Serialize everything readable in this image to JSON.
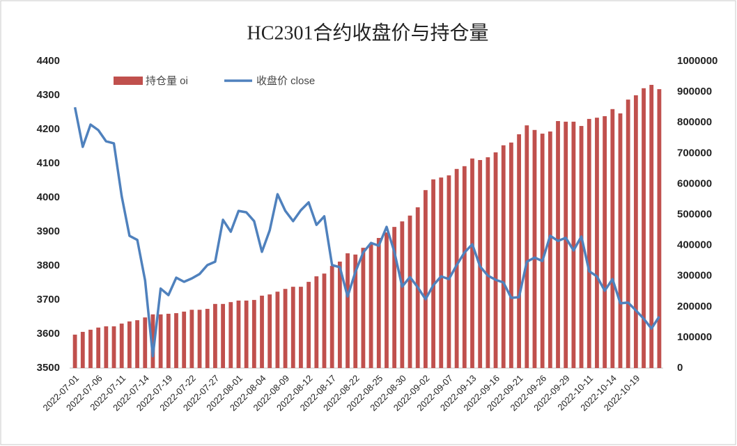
{
  "chart_data": {
    "type": "bar-line",
    "title": "HC2301合约收盘价与持仓量",
    "categories": [
      "2022-07-01",
      null,
      null,
      "2022-07-06",
      null,
      null,
      "2022-07-11",
      null,
      null,
      "2022-07-14",
      null,
      null,
      "2022-07-19",
      null,
      null,
      "2022-07-22",
      null,
      null,
      "2022-07-27",
      null,
      null,
      "2022-08-01",
      null,
      null,
      "2022-08-04",
      null,
      null,
      "2022-08-09",
      null,
      null,
      "2022-08-12",
      null,
      null,
      "2022-08-17",
      null,
      null,
      "2022-08-22",
      null,
      null,
      "2022-08-25",
      null,
      null,
      "2022-08-30",
      null,
      null,
      "2022-09-02",
      null,
      null,
      "2022-09-07",
      null,
      null,
      "2022-09-13",
      null,
      null,
      "2022-09-16",
      null,
      null,
      "2022-09-21",
      null,
      null,
      "2022-09-26",
      null,
      null,
      "2022-09-29",
      null,
      null,
      "2022-10-11",
      null,
      null,
      "2022-10-14",
      null,
      null,
      "2022-10-19",
      null,
      null,
      null
    ],
    "series": [
      {
        "name": "持仓量 oi",
        "type": "bar",
        "axis": "y2",
        "color": "#c0504d",
        "values": [
          109000,
          118000,
          125000,
          132000,
          136000,
          136000,
          145000,
          152000,
          156000,
          165000,
          175000,
          175000,
          177000,
          179000,
          184000,
          190000,
          190000,
          193000,
          209000,
          209000,
          215000,
          220000,
          220000,
          222000,
          236000,
          240000,
          249000,
          258000,
          265000,
          265000,
          281000,
          299000,
          308000,
          333000,
          347000,
          374000,
          370000,
          392000,
          406000,
          424000,
          442000,
          460000,
          478000,
          497000,
          524000,
          580000,
          615000,
          621000,
          628000,
          649000,
          658000,
          683000,
          678000,
          687000,
          703000,
          726000,
          735000,
          762000,
          791000,
          776000,
          764000,
          771000,
          805000,
          803000,
          803000,
          789000,
          812000,
          816000,
          821000,
          844000,
          830000,
          875000,
          889000,
          912000,
          923000,
          909000
        ]
      },
      {
        "name": "收盘价 close",
        "type": "line",
        "axis": "y",
        "color": "#4f81bd",
        "values": [
          4265,
          4149,
          4214,
          4198,
          4165,
          4159,
          4004,
          3888,
          3876,
          3757,
          3535,
          3733,
          3714,
          3765,
          3753,
          3763,
          3776,
          3802,
          3812,
          3935,
          3900,
          3961,
          3957,
          3931,
          3841,
          3904,
          4010,
          3961,
          3931,
          3963,
          3986,
          3920,
          3945,
          3802,
          3796,
          3710,
          3782,
          3839,
          3867,
          3859,
          3914,
          3841,
          3739,
          3767,
          3737,
          3702,
          3743,
          3769,
          3761,
          3802,
          3839,
          3863,
          3798,
          3771,
          3759,
          3751,
          3706,
          3708,
          3812,
          3824,
          3814,
          3888,
          3873,
          3882,
          3845,
          3886,
          3784,
          3769,
          3727,
          3761,
          3690,
          3692,
          3669,
          3645,
          3616,
          3651
        ]
      }
    ],
    "ylim": [
      3500,
      4400
    ],
    "yticks": [
      3500,
      3600,
      3700,
      3800,
      3900,
      4000,
      4100,
      4200,
      4300,
      4400
    ],
    "y2lim": [
      0,
      1000000
    ],
    "y2ticks": [
      0,
      100000,
      200000,
      300000,
      400000,
      500000,
      600000,
      700000,
      800000,
      900000,
      1000000
    ],
    "grid": false,
    "legend": "top-left"
  }
}
